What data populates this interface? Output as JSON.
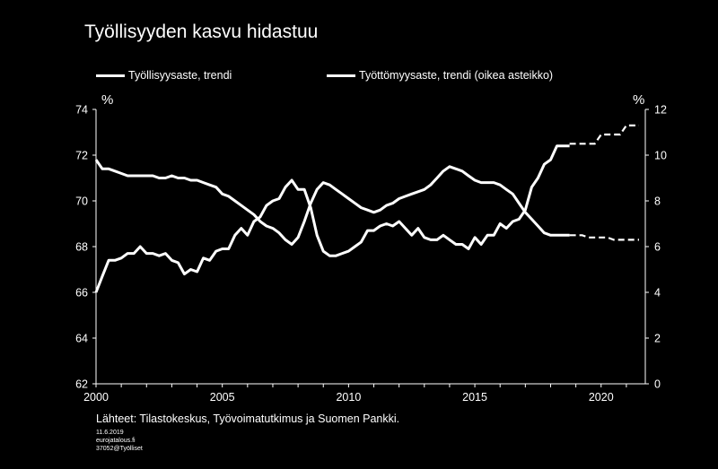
{
  "title": "Työllisyyden kasvu hidastuu",
  "legend": {
    "left": "Työllisyysaste, trendi",
    "right": "Työttömyysaste, trendi (oikea asteikko)"
  },
  "unit_left": "%",
  "unit_right": "%",
  "source": "Lähteet: Tilastokeskus, Työvoimatutkimus ja Suomen Pankki.",
  "footer": {
    "date": "11.6.2019",
    "site": "eurojatalous.fi",
    "code": "37052@Työlliset"
  },
  "colors": {
    "background": "#000000",
    "lines": "#ffffff"
  },
  "chart_data": {
    "type": "line",
    "xlim": [
      2000.0,
      2021.75
    ],
    "x_ticks": [
      2000,
      2005,
      2010,
      2015,
      2020
    ],
    "ylim_left": [
      62,
      74
    ],
    "y_ticks_left": [
      62,
      64,
      66,
      68,
      70,
      72,
      74
    ],
    "ylim_right": [
      0,
      12
    ],
    "y_ticks_right": [
      0,
      2,
      4,
      6,
      8,
      10,
      12
    ],
    "grid": false,
    "legend_position": "top",
    "series": [
      {
        "name": "Työllisyysaste, trendi",
        "axis": "left",
        "x": [
          2000.0,
          2000.25,
          2000.5,
          2000.75,
          2001.0,
          2001.25,
          2001.5,
          2001.75,
          2002.0,
          2002.25,
          2002.5,
          2002.75,
          2003.0,
          2003.25,
          2003.5,
          2003.75,
          2004.0,
          2004.25,
          2004.5,
          2004.75,
          2005.0,
          2005.25,
          2005.5,
          2005.75,
          2006.0,
          2006.25,
          2006.5,
          2006.75,
          2007.0,
          2007.25,
          2007.5,
          2007.75,
          2008.0,
          2008.25,
          2008.5,
          2008.75,
          2009.0,
          2009.25,
          2009.5,
          2009.75,
          2010.0,
          2010.25,
          2010.5,
          2010.75,
          2011.0,
          2011.25,
          2011.5,
          2011.75,
          2012.0,
          2012.25,
          2012.5,
          2012.75,
          2013.0,
          2013.25,
          2013.5,
          2013.75,
          2014.0,
          2014.25,
          2014.5,
          2014.75,
          2015.0,
          2015.25,
          2015.5,
          2015.75,
          2016.0,
          2016.25,
          2016.5,
          2016.75,
          2017.0,
          2017.25,
          2017.5,
          2017.75,
          2018.0,
          2018.25,
          2018.5,
          2018.75
        ],
        "values": [
          66.0,
          66.7,
          67.4,
          67.4,
          67.5,
          67.7,
          67.7,
          68.0,
          67.7,
          67.7,
          67.6,
          67.7,
          67.4,
          67.3,
          66.8,
          67.0,
          66.9,
          67.5,
          67.4,
          67.8,
          67.9,
          67.9,
          68.5,
          68.8,
          68.5,
          69.1,
          69.3,
          69.8,
          70.0,
          70.1,
          70.6,
          70.9,
          70.5,
          70.5,
          69.7,
          68.5,
          67.8,
          67.6,
          67.6,
          67.7,
          67.8,
          68.0,
          68.2,
          68.7,
          68.7,
          68.9,
          69.0,
          68.9,
          69.1,
          68.8,
          68.5,
          68.8,
          68.4,
          68.3,
          68.3,
          68.5,
          68.3,
          68.1,
          68.1,
          67.9,
          68.4,
          68.1,
          68.5,
          68.5,
          69.0,
          68.8,
          69.1,
          69.2,
          69.6,
          70.6,
          71.0,
          71.6,
          71.8,
          72.4,
          72.4,
          72.4
        ],
        "projection": {
          "x": [
            2018.75,
            2019.0,
            2019.25,
            2019.5,
            2019.75,
            2020.0,
            2020.25,
            2020.5,
            2020.75,
            2021.0,
            2021.25,
            2021.5
          ],
          "values": [
            72.5,
            72.5,
            72.5,
            72.5,
            72.5,
            72.9,
            72.9,
            72.9,
            72.9,
            73.3,
            73.3,
            73.3
          ]
        }
      },
      {
        "name": "Työttömyysaste, trendi (oikea asteikko)",
        "axis": "right",
        "x": [
          2000.0,
          2000.25,
          2000.5,
          2000.75,
          2001.0,
          2001.25,
          2001.5,
          2001.75,
          2002.0,
          2002.25,
          2002.5,
          2002.75,
          2003.0,
          2003.25,
          2003.5,
          2003.75,
          2004.0,
          2004.25,
          2004.5,
          2004.75,
          2005.0,
          2005.25,
          2005.5,
          2005.75,
          2006.0,
          2006.25,
          2006.5,
          2006.75,
          2007.0,
          2007.25,
          2007.5,
          2007.75,
          2008.0,
          2008.25,
          2008.5,
          2008.75,
          2009.0,
          2009.25,
          2009.5,
          2009.75,
          2010.0,
          2010.25,
          2010.5,
          2010.75,
          2011.0,
          2011.25,
          2011.5,
          2011.75,
          2012.0,
          2012.25,
          2012.5,
          2012.75,
          2013.0,
          2013.25,
          2013.5,
          2013.75,
          2014.0,
          2014.25,
          2014.5,
          2014.75,
          2015.0,
          2015.25,
          2015.5,
          2015.75,
          2016.0,
          2016.25,
          2016.5,
          2016.75,
          2017.0,
          2017.25,
          2017.5,
          2017.75,
          2018.0,
          2018.25,
          2018.5,
          2018.75
        ],
        "values": [
          9.8,
          9.4,
          9.4,
          9.3,
          9.2,
          9.1,
          9.1,
          9.1,
          9.1,
          9.1,
          9.0,
          9.0,
          9.1,
          9.0,
          9.0,
          8.9,
          8.9,
          8.8,
          8.7,
          8.6,
          8.3,
          8.2,
          8.0,
          7.8,
          7.6,
          7.4,
          7.1,
          6.9,
          6.8,
          6.6,
          6.3,
          6.1,
          6.4,
          7.1,
          7.9,
          8.5,
          8.8,
          8.7,
          8.5,
          8.3,
          8.1,
          7.9,
          7.7,
          7.6,
          7.5,
          7.6,
          7.8,
          7.9,
          8.1,
          8.2,
          8.3,
          8.4,
          8.5,
          8.7,
          9.0,
          9.3,
          9.5,
          9.4,
          9.3,
          9.1,
          8.9,
          8.8,
          8.8,
          8.8,
          8.7,
          8.5,
          8.3,
          7.9,
          7.5,
          7.2,
          6.9,
          6.6,
          6.5,
          6.5,
          6.5,
          6.5
        ],
        "projection": {
          "x": [
            2018.75,
            2019.0,
            2019.25,
            2019.5,
            2019.75,
            2020.0,
            2020.25,
            2020.5,
            2020.75,
            2021.0,
            2021.25,
            2021.5
          ],
          "values": [
            6.5,
            6.5,
            6.5,
            6.4,
            6.4,
            6.4,
            6.4,
            6.3,
            6.3,
            6.3,
            6.3,
            6.3
          ]
        }
      }
    ]
  }
}
